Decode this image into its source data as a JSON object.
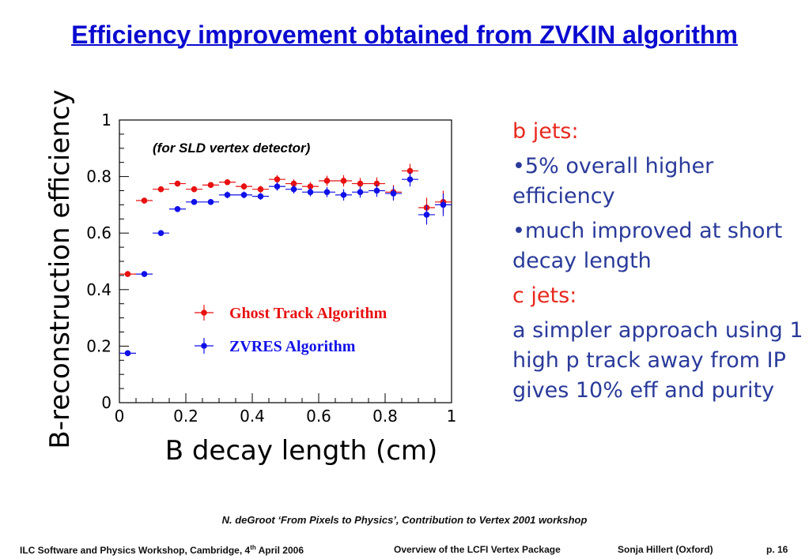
{
  "slide": {
    "title": "Efficiency improvement obtained from ZVKIN algorithm",
    "credit": "N. deGroot  ‘From Pixels to Physics’, Contribution to Vertex 2001 workshop",
    "footer": {
      "left_pre": "ILC Software and Physics Workshop, Cambridge, 4",
      "left_sup": "th",
      "left_post": " April 2006",
      "center": "Overview of the LCFI Vertex Package",
      "author": "Sonja Hillert (Oxford)",
      "page": "p. 16"
    }
  },
  "side_text": [
    {
      "text": "b jets:",
      "color": "red"
    },
    {
      "text": "•5% overall higher efficiency",
      "color": "blue"
    },
    {
      "text": "•much improved at short decay length",
      "color": "blue"
    },
    {
      "text": "c jets:",
      "color": "red"
    },
    {
      "text": "a simpler approach using 1 high p track away from IP gives 10% eff and purity",
      "color": "blue"
    }
  ],
  "chart_data": {
    "type": "scatter",
    "title": "",
    "annotation": "(for SLD vertex detector)",
    "xlabel": "B decay length (cm)",
    "ylabel": "B-reconstruction efficiency",
    "xlim": [
      0,
      1
    ],
    "ylim": [
      0,
      1
    ],
    "xticks": [
      "0",
      "0.2",
      "0.4",
      "0.6",
      "0.8",
      "1"
    ],
    "yticks": [
      "0",
      "0.2",
      "0.4",
      "0.6",
      "0.8",
      "1"
    ],
    "legend_position": "center-right",
    "grid": false,
    "series": [
      {
        "name": "Ghost Track Algorithm",
        "color": "#e81010",
        "x": [
          0.025,
          0.075,
          0.125,
          0.175,
          0.225,
          0.275,
          0.325,
          0.375,
          0.425,
          0.475,
          0.525,
          0.575,
          0.625,
          0.675,
          0.725,
          0.775,
          0.825,
          0.875,
          0.925,
          0.975
        ],
        "y": [
          0.455,
          0.715,
          0.755,
          0.775,
          0.755,
          0.77,
          0.78,
          0.765,
          0.755,
          0.79,
          0.775,
          0.765,
          0.785,
          0.785,
          0.775,
          0.775,
          0.745,
          0.82,
          0.69,
          0.71
        ],
        "yerr": [
          0.005,
          0.008,
          0.008,
          0.01,
          0.01,
          0.01,
          0.01,
          0.012,
          0.012,
          0.015,
          0.015,
          0.015,
          0.018,
          0.02,
          0.02,
          0.022,
          0.025,
          0.025,
          0.035,
          0.04
        ]
      },
      {
        "name": "ZVRES Algorithm",
        "color": "#1010e8",
        "x": [
          0.025,
          0.075,
          0.125,
          0.175,
          0.225,
          0.275,
          0.325,
          0.375,
          0.425,
          0.475,
          0.525,
          0.575,
          0.625,
          0.675,
          0.725,
          0.775,
          0.825,
          0.875,
          0.925,
          0.975
        ],
        "y": [
          0.175,
          0.455,
          0.6,
          0.685,
          0.71,
          0.71,
          0.735,
          0.735,
          0.73,
          0.765,
          0.755,
          0.745,
          0.745,
          0.735,
          0.745,
          0.75,
          0.74,
          0.79,
          0.665,
          0.7
        ],
        "yerr": [
          0.005,
          0.008,
          0.008,
          0.01,
          0.01,
          0.01,
          0.012,
          0.012,
          0.012,
          0.015,
          0.015,
          0.015,
          0.018,
          0.02,
          0.02,
          0.022,
          0.025,
          0.025,
          0.035,
          0.04
        ]
      }
    ]
  }
}
